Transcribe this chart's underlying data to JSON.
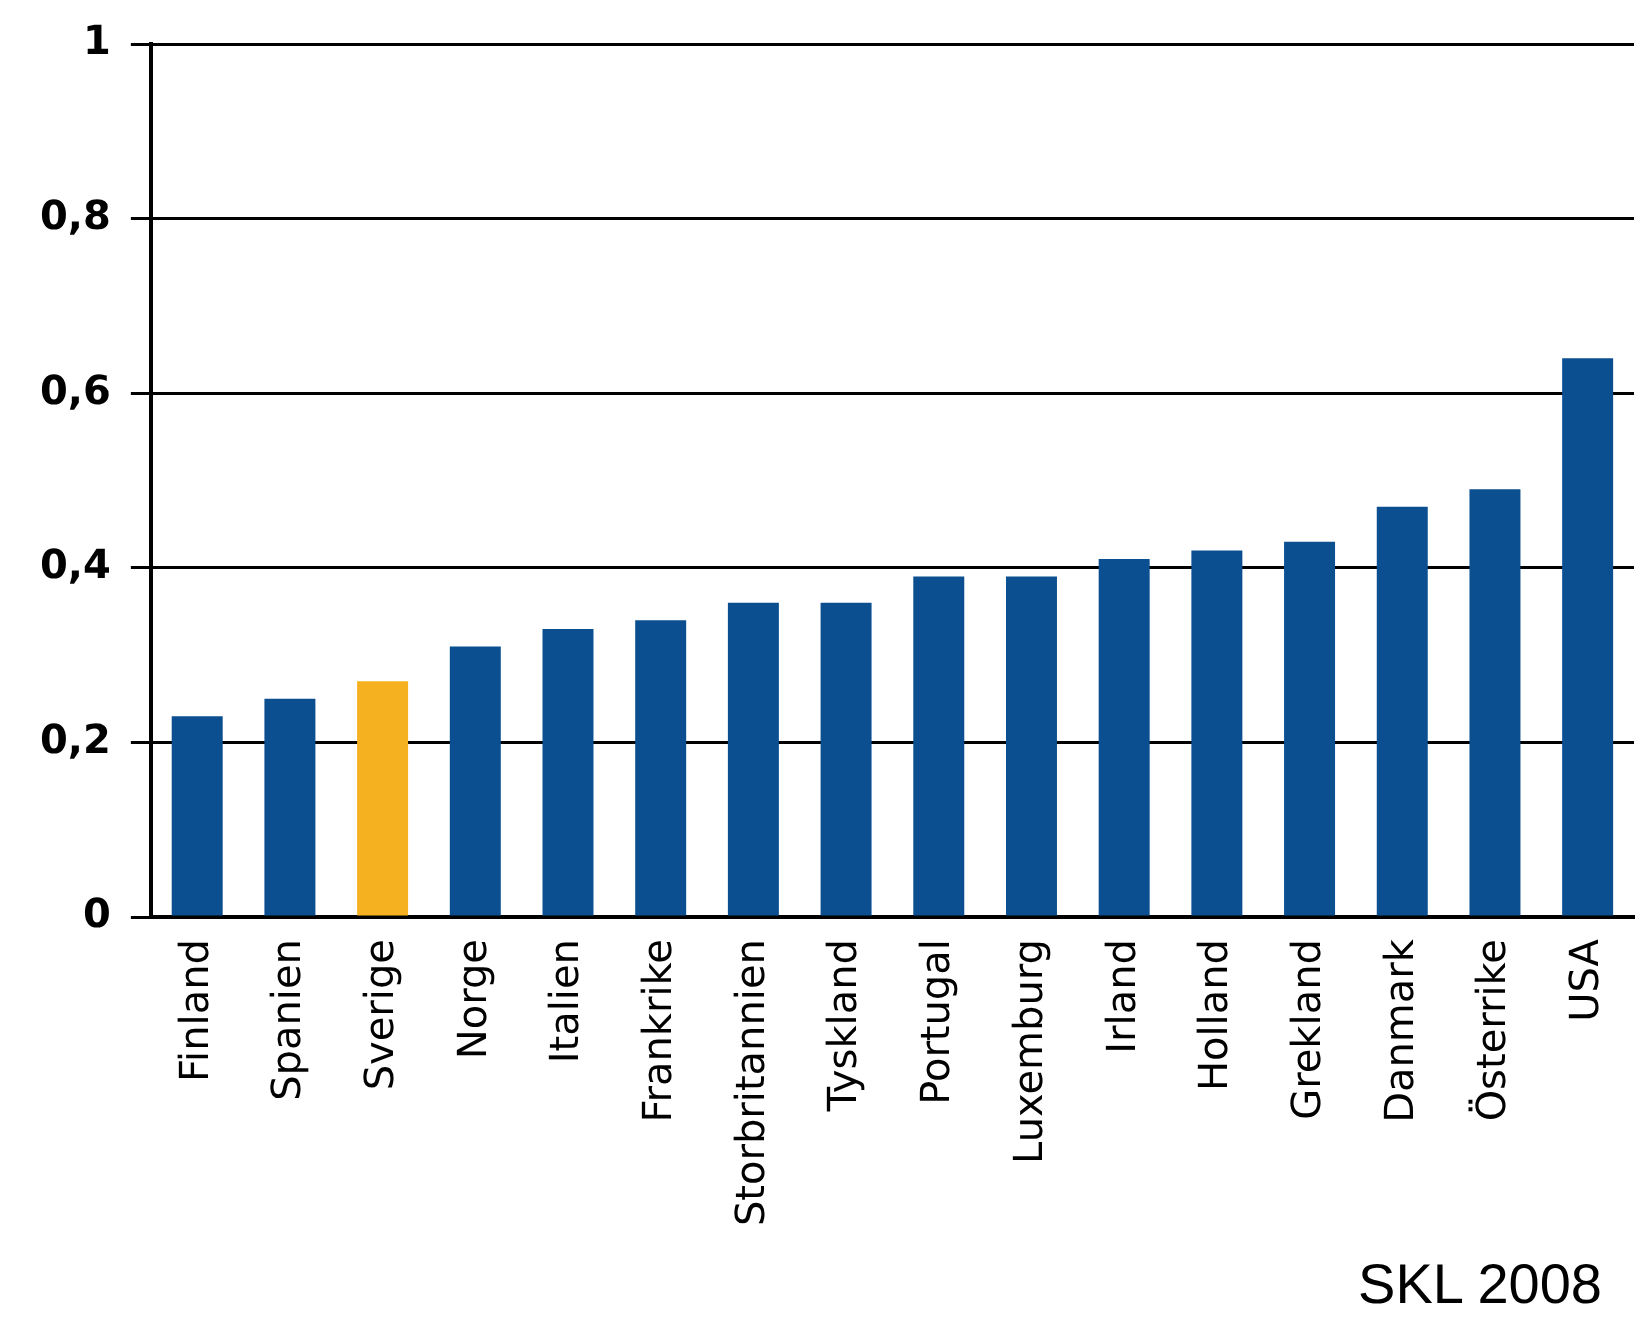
{
  "chart_data": {
    "type": "bar",
    "categories": [
      "Finland",
      "Spanien",
      "Sverige",
      "Norge",
      "Italien",
      "Frankrike",
      "Storbritannien",
      "Tyskland",
      "Portugal",
      "Luxemburg",
      "Irland",
      "Holland",
      "Grekland",
      "Danmark",
      "Österrike",
      "USA"
    ],
    "values": [
      0.23,
      0.25,
      0.27,
      0.31,
      0.33,
      0.34,
      0.36,
      0.36,
      0.39,
      0.39,
      0.41,
      0.42,
      0.43,
      0.47,
      0.49,
      0.64
    ],
    "colors": [
      "#0b4f90",
      "#0b4f90",
      "#f5b120",
      "#0b4f90",
      "#0b4f90",
      "#0b4f90",
      "#0b4f90",
      "#0b4f90",
      "#0b4f90",
      "#0b4f90",
      "#0b4f90",
      "#0b4f90",
      "#0b4f90",
      "#0b4f90",
      "#0b4f90",
      "#0b4f90"
    ],
    "ylim": [
      0,
      1
    ],
    "yticks": [
      0,
      {
        "value": 0.2,
        "label": "0,2"
      },
      {
        "value": 0.4,
        "label": "0,4"
      },
      {
        "value": 0.6,
        "label": "0,6"
      },
      {
        "value": 0.8,
        "label": "0,8"
      },
      1
    ],
    "grid": "y",
    "legend": false,
    "annotations": [
      "SKL 2008"
    ]
  }
}
